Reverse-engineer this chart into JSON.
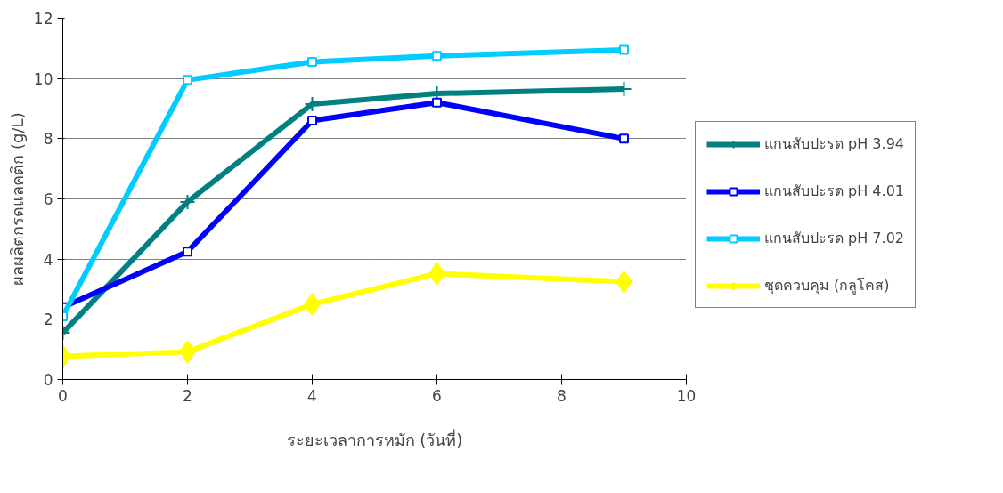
{
  "chart_data": {
    "type": "line",
    "xlabel": "ระยะเวลาการหมัก (วันที่)",
    "ylabel": "ผลผลิตกรดแลคติก (g/L)",
    "x": [
      0,
      2,
      4,
      6,
      9
    ],
    "series": [
      {
        "name": "แกนสับปะรด pH 3.94",
        "color": "#008080",
        "marker": "cross",
        "values": [
          1.55,
          5.9,
          9.15,
          9.5,
          9.65
        ]
      },
      {
        "name": "แกนสับปะรด pH 4.01",
        "color": "#0000ff",
        "marker": "square",
        "values": [
          2.4,
          4.25,
          8.6,
          9.2,
          8.0
        ]
      },
      {
        "name": "แกนสับปะรด pH 7.02",
        "color": "#00ccff",
        "marker": "square",
        "values": [
          2.1,
          9.95,
          10.55,
          10.75,
          10.95
        ]
      },
      {
        "name": "ชุดควบคุม (กลูโคส)",
        "color": "#ffff00",
        "marker": "diamond",
        "values": [
          0.77,
          0.92,
          2.5,
          3.52,
          3.25
        ]
      }
    ],
    "xlim": [
      0,
      10
    ],
    "xticks": [
      0,
      2,
      4,
      6,
      8,
      10
    ],
    "ylim": [
      0,
      12
    ],
    "yticks": [
      0,
      2,
      4,
      6,
      8,
      10,
      12
    ],
    "grid": "y",
    "legend": "right",
    "line_style": "solid"
  }
}
